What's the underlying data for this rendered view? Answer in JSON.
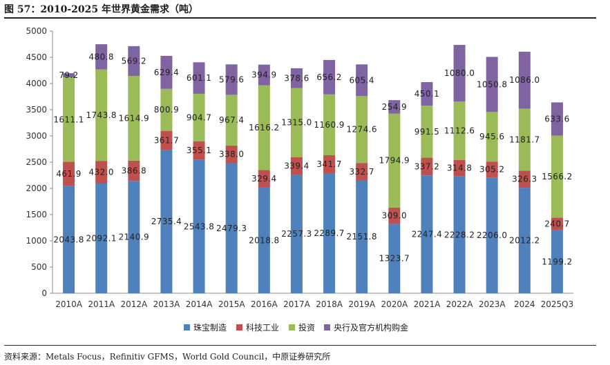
{
  "title": "图 57：2010-2025 年世界黄金需求（吨）",
  "source": "资料来源：Metals Focus，Refinitiv GFMS，World Gold Council，中原证券研究所",
  "chart_data": {
    "type": "bar",
    "stacked": true,
    "categories": [
      "2010A",
      "2011A",
      "2012A",
      "2013A",
      "2014A",
      "2015A",
      "2016A",
      "2017A",
      "2018A",
      "2019A",
      "2020A",
      "2021A",
      "2022A",
      "2023A",
      "2024",
      "2025Q3"
    ],
    "series": [
      {
        "name": "珠宝制造",
        "color": "#4f81bd",
        "values": [
          2043.8,
          2092.1,
          2140.9,
          2735.4,
          2543.8,
          2479.3,
          2018.8,
          2257.3,
          2289.7,
          2151.8,
          1323.7,
          2247.4,
          2228.2,
          2206.0,
          2012.2,
          1199.2
        ],
        "labels": [
          "2043.8",
          "2092.1",
          "2140.9",
          "2735.4",
          "2543.8",
          "2479.3",
          "2018.8",
          "2257.3",
          "2289.7",
          "2151.8",
          "1323.7",
          "2247.4",
          "2228.2",
          "2206.0",
          "2012.2",
          "1199.2"
        ]
      },
      {
        "name": "科技工业",
        "color": "#c0504d",
        "values": [
          461.9,
          432.0,
          386.8,
          361.7,
          355.1,
          338.0,
          329.4,
          339.4,
          341.7,
          332.7,
          309.0,
          337.2,
          314.8,
          305.2,
          326.3,
          240.7
        ],
        "labels": [
          "461.9",
          "432.0",
          "386.8",
          "361.7",
          "355.1",
          "338.0",
          "329.4",
          "339.4",
          "341.7",
          "332.7",
          "309.0",
          "337.2",
          "314.8",
          "305.2",
          "326.3",
          "240.7"
        ]
      },
      {
        "name": "投资",
        "color": "#9bbb59",
        "values": [
          1611.1,
          1743.8,
          1614.9,
          800.9,
          904.7,
          967.4,
          1616.2,
          1315.0,
          1160.9,
          1274.6,
          1794.9,
          991.5,
          1112.6,
          945.6,
          1181.7,
          1566.2
        ],
        "labels": [
          "1611.1",
          "1743.8",
          "1614.9",
          "800.9",
          "904.7",
          "967.4",
          "1616.2",
          "1315.0",
          "1160.9",
          "1274.6",
          "1794.9",
          "991.5",
          "1112.6",
          "945.6",
          "1181.7",
          "1566.2"
        ]
      },
      {
        "name": "央行及官方机构购金",
        "color": "#8064a2",
        "values": [
          79.2,
          480.8,
          569.2,
          629.4,
          601.1,
          579.6,
          394.9,
          378.6,
          656.2,
          605.4,
          254.9,
          450.1,
          1080.0,
          1050.8,
          1086.0,
          633.6
        ],
        "labels": [
          "79.2",
          "480.8",
          "569.2",
          "629.4",
          "601.1",
          "579.6",
          "394.9",
          "378.6",
          "656.2",
          "605.4",
          "254.9",
          "450.1",
          "1080.0",
          "1050.8",
          "1086.0",
          "633.6"
        ]
      }
    ],
    "ylim": [
      0,
      5000
    ],
    "yticks": [
      "0",
      "500",
      "1000",
      "1500",
      "2000",
      "2500",
      "3000",
      "3500",
      "4000",
      "4500",
      "5000"
    ],
    "grid": false,
    "legend_position": "bottom"
  }
}
